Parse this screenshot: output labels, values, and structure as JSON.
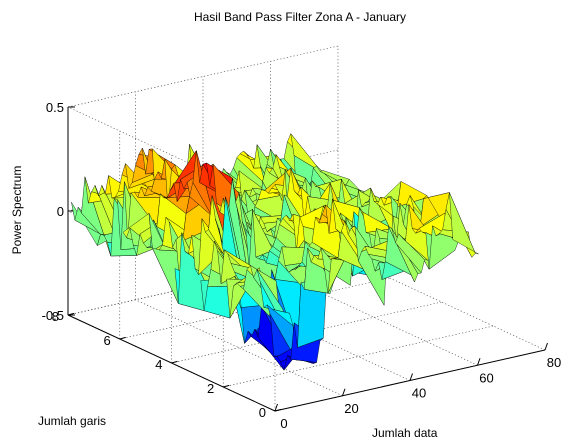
{
  "chart_data": {
    "type": "surface",
    "title": "Hasil Band Pass Filter Zona A - January",
    "xlabel": "Jumlah data",
    "ylabel": "Jumlah garis",
    "zlabel": "Power Spectrum",
    "xlim": [
      0,
      80
    ],
    "ylim": [
      0,
      8
    ],
    "zlim": [
      -0.5,
      0.5
    ],
    "xticks": [
      "0",
      "20",
      "40",
      "60",
      "80"
    ],
    "yticks": [
      "0",
      "2",
      "4",
      "6",
      "8"
    ],
    "zticks": [
      "-0.5",
      "0",
      "0.5"
    ],
    "grid": true,
    "colormap": "jet",
    "surface_extent": {
      "x": [
        1,
        68
      ],
      "y": [
        1,
        8
      ]
    }
  }
}
